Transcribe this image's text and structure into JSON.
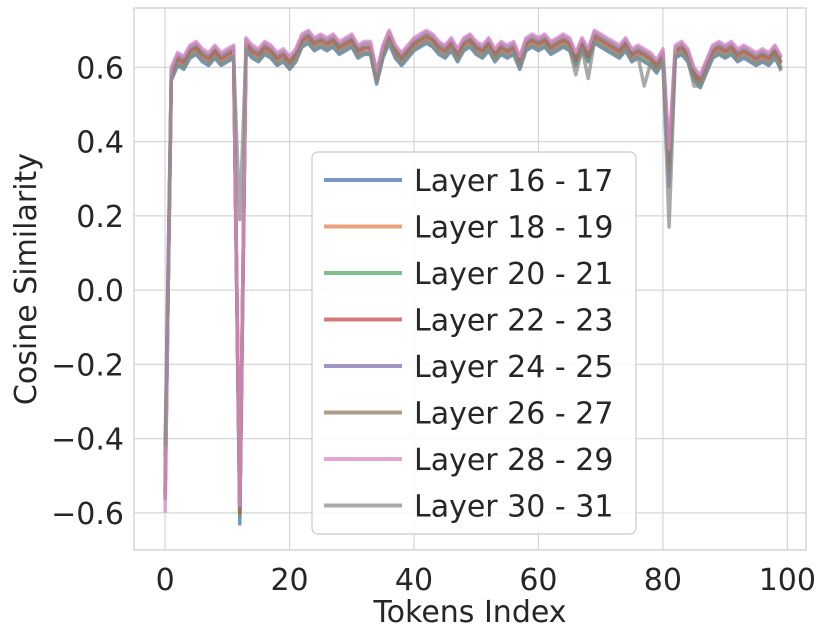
{
  "chart_data": {
    "type": "line",
    "title": "",
    "xlabel": "Tokens Index",
    "ylabel": "Cosine Similarity",
    "xlim": [
      -5,
      103
    ],
    "ylim": [
      -0.7,
      0.76
    ],
    "xticks": [
      0,
      20,
      40,
      60,
      80,
      100
    ],
    "yticks": [
      -0.6,
      -0.4,
      -0.2,
      0.0,
      0.2,
      0.4,
      0.6
    ],
    "xtick_labels": [
      "0",
      "20",
      "40",
      "60",
      "80",
      "100"
    ],
    "ytick_labels": [
      "−0.6",
      "−0.4",
      "−0.2",
      "0.0",
      "0.2",
      "0.4",
      "0.6"
    ],
    "grid": true,
    "legend_position": "lower-center",
    "x": [
      0,
      1,
      2,
      3,
      4,
      5,
      6,
      7,
      8,
      9,
      10,
      11,
      12,
      13,
      14,
      15,
      16,
      17,
      18,
      19,
      20,
      21,
      22,
      23,
      24,
      25,
      26,
      27,
      28,
      29,
      30,
      31,
      32,
      33,
      34,
      35,
      36,
      37,
      38,
      39,
      40,
      41,
      42,
      43,
      44,
      45,
      46,
      47,
      48,
      49,
      50,
      51,
      52,
      53,
      54,
      55,
      56,
      57,
      58,
      59,
      60,
      61,
      62,
      63,
      64,
      65,
      66,
      67,
      68,
      69,
      70,
      71,
      72,
      73,
      74,
      75,
      76,
      77,
      78,
      79,
      80,
      81,
      82,
      83,
      84,
      85,
      86,
      87,
      88,
      89,
      90,
      91,
      92,
      93,
      94,
      95,
      96,
      97,
      98,
      99
    ],
    "base_profile": [
      -0.55,
      0.58,
      0.62,
      0.61,
      0.64,
      0.65,
      0.63,
      0.62,
      0.64,
      0.62,
      0.63,
      0.64,
      -0.6,
      0.66,
      0.64,
      0.63,
      0.65,
      0.64,
      0.62,
      0.63,
      0.61,
      0.63,
      0.67,
      0.68,
      0.66,
      0.67,
      0.66,
      0.67,
      0.65,
      0.66,
      0.67,
      0.64,
      0.65,
      0.65,
      0.57,
      0.64,
      0.68,
      0.64,
      0.62,
      0.64,
      0.66,
      0.67,
      0.68,
      0.67,
      0.65,
      0.64,
      0.66,
      0.63,
      0.66,
      0.67,
      0.65,
      0.64,
      0.66,
      0.63,
      0.65,
      0.64,
      0.65,
      0.61,
      0.66,
      0.67,
      0.66,
      0.67,
      0.65,
      0.66,
      0.67,
      0.66,
      0.62,
      0.66,
      0.63,
      0.68,
      0.67,
      0.66,
      0.65,
      0.64,
      0.66,
      0.63,
      0.64,
      0.63,
      0.62,
      0.6,
      0.63,
      0.3,
      0.64,
      0.65,
      0.63,
      0.58,
      0.56,
      0.6,
      0.64,
      0.65,
      0.64,
      0.65,
      0.63,
      0.64,
      0.63,
      0.62,
      0.63,
      0.62,
      0.64,
      0.61
    ],
    "series": [
      {
        "name": "Layer 16 - 17",
        "color": "#4C72B0",
        "offset": -0.015,
        "overrides": {
          "12": -0.63,
          "81": 0.28
        }
      },
      {
        "name": "Layer 18 - 19",
        "color": "#DD8452",
        "offset": 0.005,
        "overrides": {
          "81": 0.34
        }
      },
      {
        "name": "Layer 20 - 21",
        "color": "#55A868",
        "offset": -0.01,
        "overrides": {
          "81": 0.33
        }
      },
      {
        "name": "Layer 22 - 23",
        "color": "#C44E52",
        "offset": 0.0,
        "overrides": {
          "81": 0.35
        }
      },
      {
        "name": "Layer 24 - 25",
        "color": "#8172B3",
        "offset": 0.015,
        "overrides": {
          "0": -0.45,
          "81": 0.36
        }
      },
      {
        "name": "Layer 26 - 27",
        "color": "#937860",
        "offset": 0.005,
        "overrides": {
          "81": 0.32
        }
      },
      {
        "name": "Layer 28 - 29",
        "color": "#DA8BC3",
        "offset": 0.02,
        "overrides": {
          "0": -0.6,
          "81": 0.38
        }
      },
      {
        "name": "Layer 30 - 31",
        "color": "#8C8C8C",
        "offset": -0.01,
        "overrides": {
          "0": -0.42,
          "12": 0.19,
          "13": 0.65,
          "66": 0.58,
          "68": 0.57,
          "77": 0.55,
          "81": 0.17,
          "85": 0.55,
          "99": 0.59
        }
      }
    ]
  }
}
